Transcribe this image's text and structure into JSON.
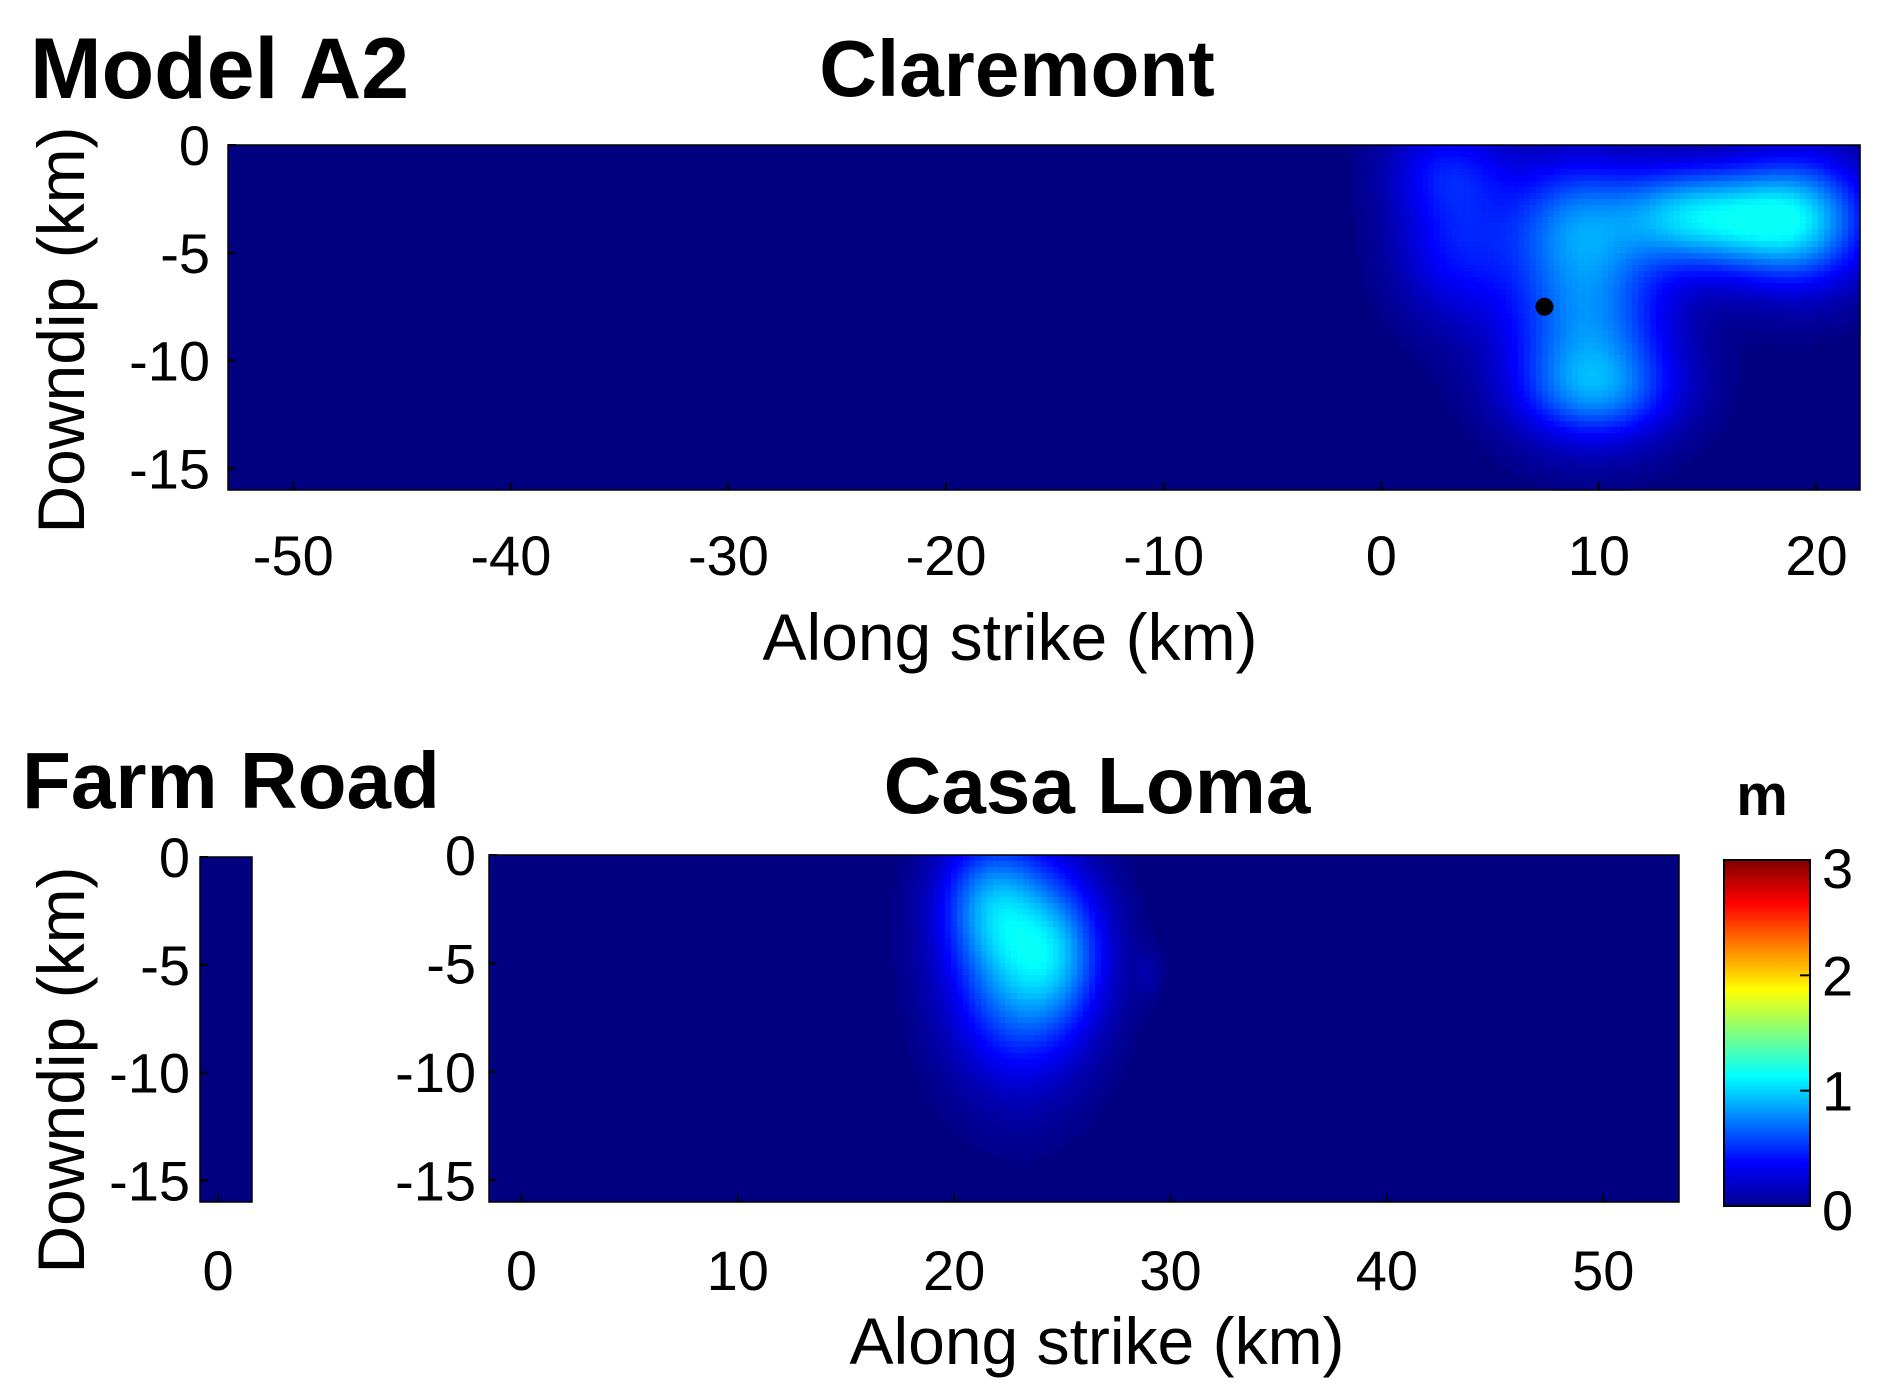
{
  "figure": {
    "model_label": "Model A2",
    "colorbar_unit": "m"
  },
  "colors": {
    "background_slip": "#00008f"
  },
  "colorbar": {
    "range": [
      0,
      3
    ],
    "ticks": [
      "0",
      "1",
      "2",
      "3"
    ],
    "colormap": "jet"
  },
  "chart_data": [
    {
      "type": "heatmap",
      "title": "Claremont",
      "xlabel": "Along strike (km)",
      "ylabel": "Downdip (km)",
      "xlim": [
        -53,
        22
      ],
      "ylim": [
        -16,
        0
      ],
      "x_ticks": [
        "-50",
        "-40",
        "-30",
        "-20",
        "-10",
        "0",
        "10",
        "20"
      ],
      "x_tick_values": [
        -50,
        -40,
        -30,
        -20,
        -10,
        0,
        10,
        20
      ],
      "y_ticks": [
        "0",
        "-5",
        "-10",
        "-15"
      ],
      "y_tick_values": [
        0,
        -5,
        -10,
        -15
      ],
      "value_unit": "m",
      "background_slip": 0,
      "slip_patches": [
        {
          "x": 9.5,
          "y": -8.5,
          "sx": 2.6,
          "sy": 3.0,
          "amp": 0.72
        },
        {
          "x": 9.0,
          "y": -3.5,
          "sx": 2.2,
          "sy": 2.2,
          "amp": 0.6
        },
        {
          "x": 16.5,
          "y": -3.5,
          "sx": 2.6,
          "sy": 1.7,
          "amp": 0.75
        },
        {
          "x": 19.5,
          "y": -3.5,
          "sx": 2.2,
          "sy": 2.2,
          "amp": 0.7
        },
        {
          "x": 13.5,
          "y": -3.2,
          "sx": 2.0,
          "sy": 1.6,
          "amp": 0.5
        },
        {
          "x": 3.5,
          "y": -4.5,
          "sx": 2.0,
          "sy": 2.5,
          "amp": 0.4
        },
        {
          "x": 3.0,
          "y": -1.0,
          "sx": 2.0,
          "sy": 1.5,
          "amp": 0.3
        },
        {
          "x": 10.0,
          "y": -11.5,
          "sx": 2.5,
          "sy": 1.5,
          "amp": 0.45
        }
      ],
      "hypocenter": {
        "x": 7.5,
        "y": -7.5
      }
    },
    {
      "type": "heatmap",
      "title": "Farm Road",
      "xlabel": "",
      "ylabel": "Downdip (km)",
      "xlim": [
        -0.8,
        1.5
      ],
      "ylim": [
        -16,
        0
      ],
      "x_ticks": [
        "0"
      ],
      "x_tick_values": [
        0
      ],
      "y_ticks": [
        "0",
        "-5",
        "-10",
        "-15"
      ],
      "y_tick_values": [
        0,
        -5,
        -10,
        -15
      ],
      "value_unit": "m",
      "background_slip": 0,
      "slip_patches": []
    },
    {
      "type": "heatmap",
      "title": "Casa Loma",
      "xlabel": "Along strike (km)",
      "ylabel": "",
      "xlim": [
        -1.5,
        53.5
      ],
      "ylim": [
        -16,
        0
      ],
      "x_ticks": [
        "0",
        "10",
        "20",
        "30",
        "40",
        "50"
      ],
      "x_tick_values": [
        0,
        10,
        20,
        30,
        40,
        50
      ],
      "y_ticks": [
        "0",
        "-5",
        "-10",
        "-15"
      ],
      "y_tick_values": [
        0,
        -5,
        -10,
        -15
      ],
      "value_unit": "m",
      "background_slip": 0,
      "slip_patches": [
        {
          "x": 23.0,
          "y": -5.0,
          "sx": 2.2,
          "sy": 3.5,
          "amp": 0.85
        },
        {
          "x": 21.5,
          "y": -2.0,
          "sx": 1.6,
          "sy": 2.0,
          "amp": 0.45
        },
        {
          "x": 25.0,
          "y": -4.5,
          "sx": 1.5,
          "sy": 2.2,
          "amp": 0.4
        },
        {
          "x": 29.0,
          "y": -5.5,
          "sx": 0.4,
          "sy": 0.8,
          "amp": 0.1
        }
      ]
    }
  ]
}
